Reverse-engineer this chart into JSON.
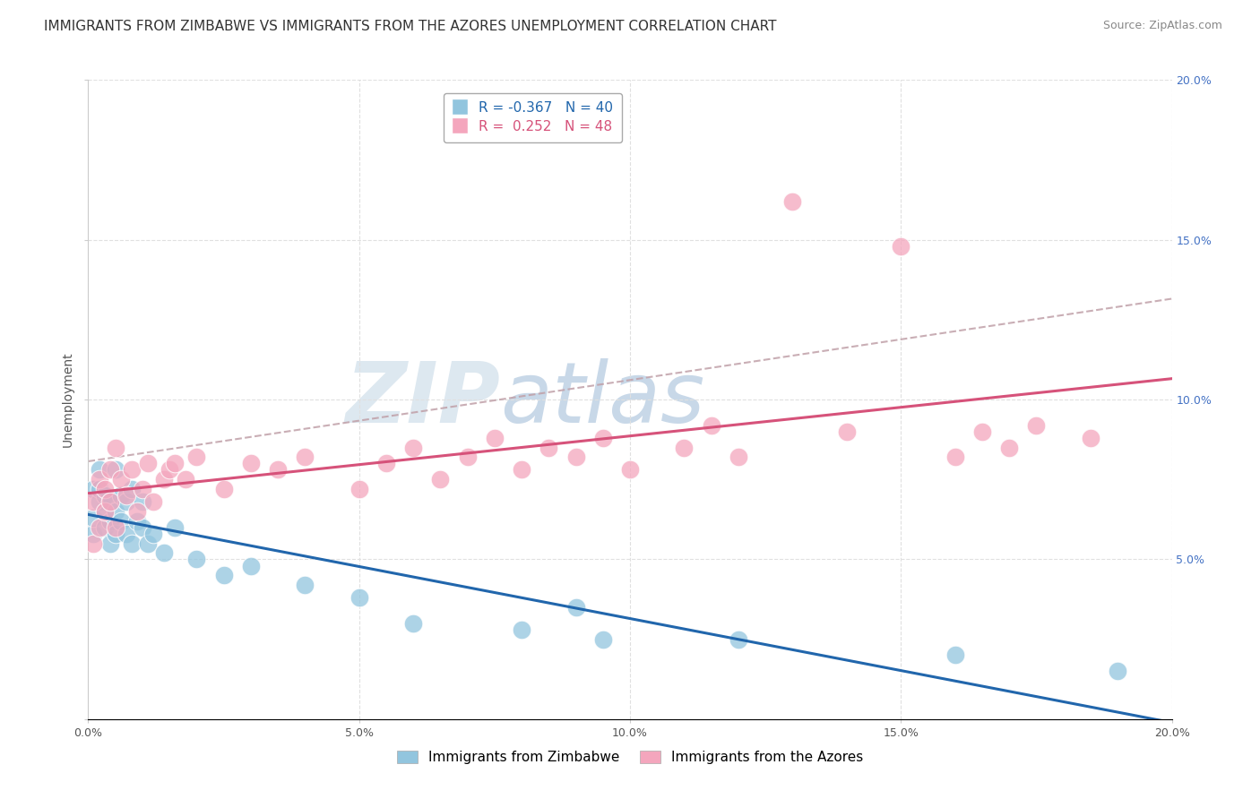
{
  "title": "IMMIGRANTS FROM ZIMBABWE VS IMMIGRANTS FROM THE AZORES UNEMPLOYMENT CORRELATION CHART",
  "source": "Source: ZipAtlas.com",
  "ylabel": "Unemployment",
  "legend_label1": "Immigrants from Zimbabwe",
  "legend_label2": "Immigrants from the Azores",
  "R1": -0.367,
  "N1": 40,
  "R2": 0.252,
  "N2": 48,
  "color1": "#92c5de",
  "color2": "#f4a6bd",
  "trend_color1": "#2166ac",
  "trend_color2": "#d6527a",
  "dash_color": "#c0a0a8",
  "xlim": [
    0.0,
    0.2
  ],
  "ylim": [
    0.0,
    0.2
  ],
  "xticks": [
    0.0,
    0.05,
    0.1,
    0.15,
    0.2
  ],
  "yticks": [
    0.0,
    0.05,
    0.1,
    0.15,
    0.2
  ],
  "xticklabels": [
    "0.0%",
    "5.0%",
    "10.0%",
    "15.0%",
    "20.0%"
  ],
  "yticklabels": [
    "",
    "5.0%",
    "10.0%",
    "15.0%",
    "20.0%"
  ],
  "zimbabwe_x": [
    0.001,
    0.001,
    0.001,
    0.002,
    0.002,
    0.002,
    0.003,
    0.003,
    0.003,
    0.004,
    0.004,
    0.004,
    0.005,
    0.005,
    0.005,
    0.006,
    0.006,
    0.007,
    0.007,
    0.008,
    0.008,
    0.009,
    0.01,
    0.01,
    0.011,
    0.012,
    0.014,
    0.016,
    0.02,
    0.025,
    0.03,
    0.04,
    0.05,
    0.06,
    0.08,
    0.09,
    0.095,
    0.12,
    0.16,
    0.19
  ],
  "zimbabwe_y": [
    0.058,
    0.063,
    0.072,
    0.068,
    0.072,
    0.078,
    0.06,
    0.065,
    0.07,
    0.055,
    0.062,
    0.068,
    0.058,
    0.065,
    0.078,
    0.062,
    0.07,
    0.058,
    0.068,
    0.055,
    0.072,
    0.062,
    0.06,
    0.068,
    0.055,
    0.058,
    0.052,
    0.06,
    0.05,
    0.045,
    0.048,
    0.042,
    0.038,
    0.03,
    0.028,
    0.035,
    0.025,
    0.025,
    0.02,
    0.015
  ],
  "azores_x": [
    0.001,
    0.001,
    0.002,
    0.002,
    0.003,
    0.003,
    0.004,
    0.004,
    0.005,
    0.005,
    0.006,
    0.007,
    0.008,
    0.009,
    0.01,
    0.011,
    0.012,
    0.014,
    0.015,
    0.016,
    0.018,
    0.02,
    0.025,
    0.03,
    0.035,
    0.04,
    0.05,
    0.055,
    0.06,
    0.065,
    0.07,
    0.075,
    0.08,
    0.085,
    0.09,
    0.095,
    0.1,
    0.11,
    0.115,
    0.12,
    0.13,
    0.14,
    0.15,
    0.16,
    0.165,
    0.17,
    0.175,
    0.185
  ],
  "azores_y": [
    0.055,
    0.068,
    0.06,
    0.075,
    0.065,
    0.072,
    0.068,
    0.078,
    0.06,
    0.085,
    0.075,
    0.07,
    0.078,
    0.065,
    0.072,
    0.08,
    0.068,
    0.075,
    0.078,
    0.08,
    0.075,
    0.082,
    0.072,
    0.08,
    0.078,
    0.082,
    0.072,
    0.08,
    0.085,
    0.075,
    0.082,
    0.088,
    0.078,
    0.085,
    0.082,
    0.088,
    0.078,
    0.085,
    0.092,
    0.082,
    0.162,
    0.09,
    0.148,
    0.082,
    0.09,
    0.085,
    0.092,
    0.088
  ],
  "background_color": "#ffffff",
  "grid_color": "#e0e0e0",
  "watermark_color": "#dde8f0",
  "title_fontsize": 11,
  "axis_label_fontsize": 10,
  "tick_fontsize": 9,
  "legend_fontsize": 11,
  "source_fontsize": 9,
  "right_ytick_color": "#4472c4"
}
